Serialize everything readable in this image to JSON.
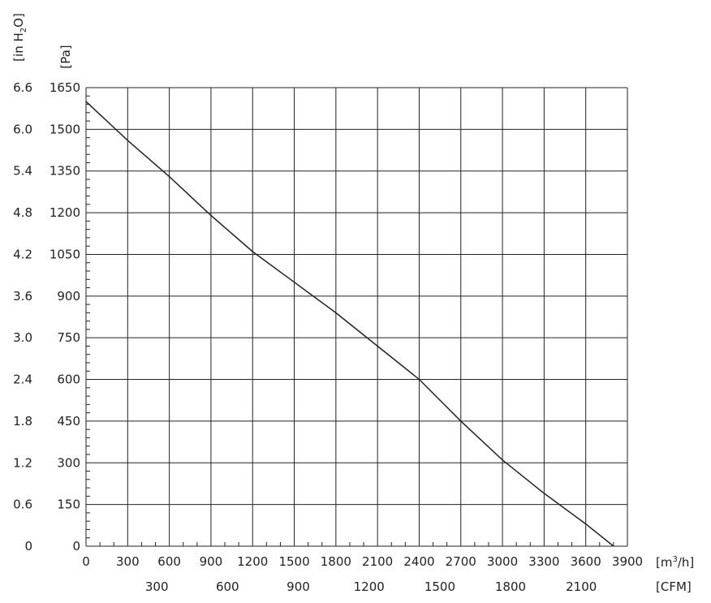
{
  "chart_data": {
    "type": "line",
    "title": "",
    "xlabel": "[m³/h]",
    "xlabel_secondary": "[CFM]",
    "ylabel": "[Pa]",
    "ylabel_secondary": "[in H₂O]",
    "xlim": [
      0,
      3900
    ],
    "ylim": [
      0,
      1650
    ],
    "grid": true,
    "x_ticks": [
      "0",
      "300",
      "600",
      "900",
      "1200",
      "1500",
      "1800",
      "2100",
      "2400",
      "2700",
      "3000",
      "3300",
      "3600",
      "3900"
    ],
    "y_ticks": [
      "0",
      "150",
      "300",
      "450",
      "600",
      "750",
      "900",
      "1050",
      "1200",
      "1350",
      "1500",
      "1650"
    ],
    "y2_ticks": [
      "0",
      "0.6",
      "1.2",
      "1.8",
      "2.4",
      "3.0",
      "3.6",
      "4.2",
      "4.8",
      "5.4",
      "6.0",
      "6.6"
    ],
    "cfm_ticks": [
      {
        "label": "300",
        "m3h": 510
      },
      {
        "label": "600",
        "m3h": 1019
      },
      {
        "label": "900",
        "m3h": 1529
      },
      {
        "label": "1200",
        "m3h": 2039
      },
      {
        "label": "1500",
        "m3h": 2549
      },
      {
        "label": "1800",
        "m3h": 3058
      },
      {
        "label": "2100",
        "m3h": 3568
      }
    ],
    "series": [
      {
        "x": [
          0,
          300,
          600,
          900,
          1200,
          1500,
          1800,
          2100,
          2400,
          2700,
          3000,
          3300,
          3600,
          3800
        ],
        "y": [
          1600,
          1460,
          1330,
          1190,
          1060,
          950,
          840,
          720,
          600,
          450,
          310,
          190,
          80,
          0
        ]
      }
    ]
  },
  "axis_labels": {
    "pa": "[Pa]",
    "in_h2o_prefix": "[in H",
    "in_h2o_sub": "2",
    "in_h2o_suffix": "O]",
    "m3h_prefix": "[m",
    "m3h_sup": "3",
    "m3h_suffix": "/h]",
    "cfm": "[CFM]"
  },
  "colors": {
    "line": "#222222",
    "grid": "#222222"
  }
}
